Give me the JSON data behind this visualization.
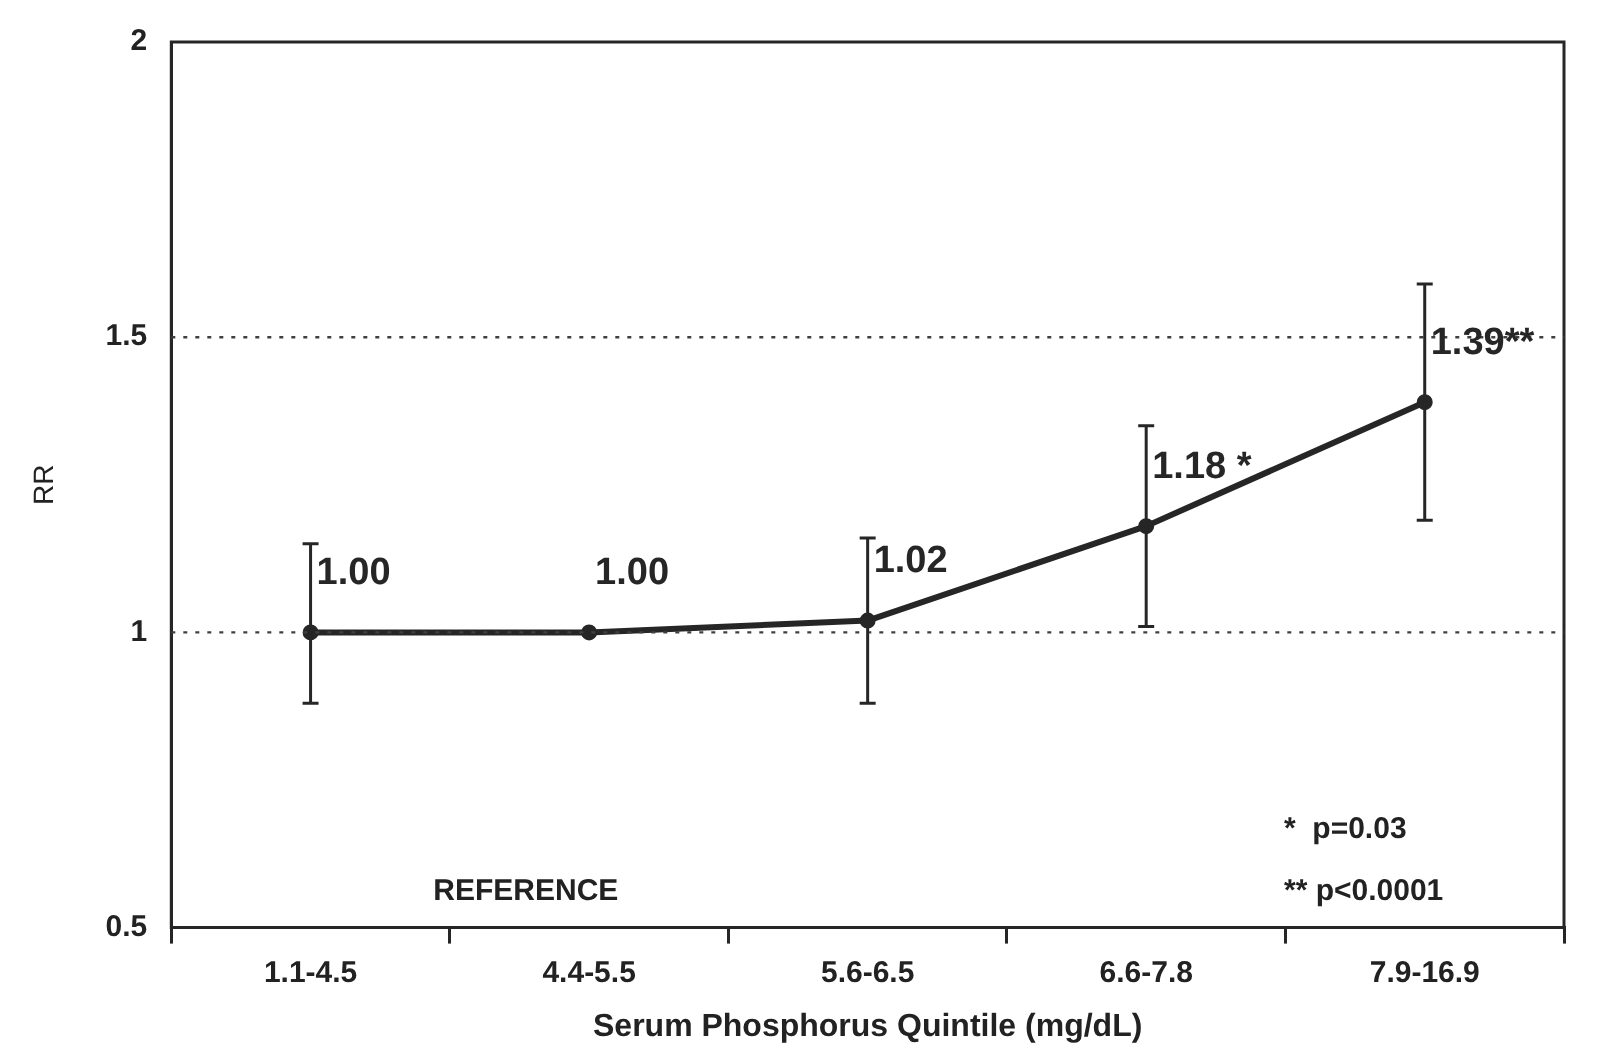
{
  "chart_data": {
    "type": "line",
    "xlabel": "Serum Phosphorus Quintile (mg/dL)",
    "ylabel": "RR",
    "categories": [
      "1.1-4.5",
      "4.4-5.5",
      "5.6-6.5",
      "6.6-7.8",
      "7.9-16.9"
    ],
    "series": [
      {
        "color": "#262626",
        "values": [
          1.0,
          1.0,
          1.02,
          1.18,
          1.39
        ],
        "errors": [
          [
            0.88,
            1.15
          ],
          null,
          [
            0.88,
            1.16
          ],
          [
            1.01,
            1.35
          ],
          [
            1.19,
            1.59
          ]
        ],
        "value_labels": [
          "1.00",
          "1.00",
          "1.02",
          "1.18 *",
          "1.39**"
        ]
      }
    ],
    "ylim": [
      0.5,
      2
    ],
    "yticks": [
      0.5,
      1,
      1.5,
      2
    ],
    "ref_lines": [
      {
        "axis": "y",
        "value": 1.5,
        "line_style": "dotted",
        "color": "#404040"
      },
      {
        "axis": "y",
        "value": 1,
        "line_style": "dotted",
        "color": "#404040"
      }
    ],
    "annotations": [
      "REFERENCE",
      "*  p=0.03",
      "** p<0.0001"
    ],
    "grid": false,
    "legend": false,
    "marker": "circle",
    "line_style": "solid"
  }
}
